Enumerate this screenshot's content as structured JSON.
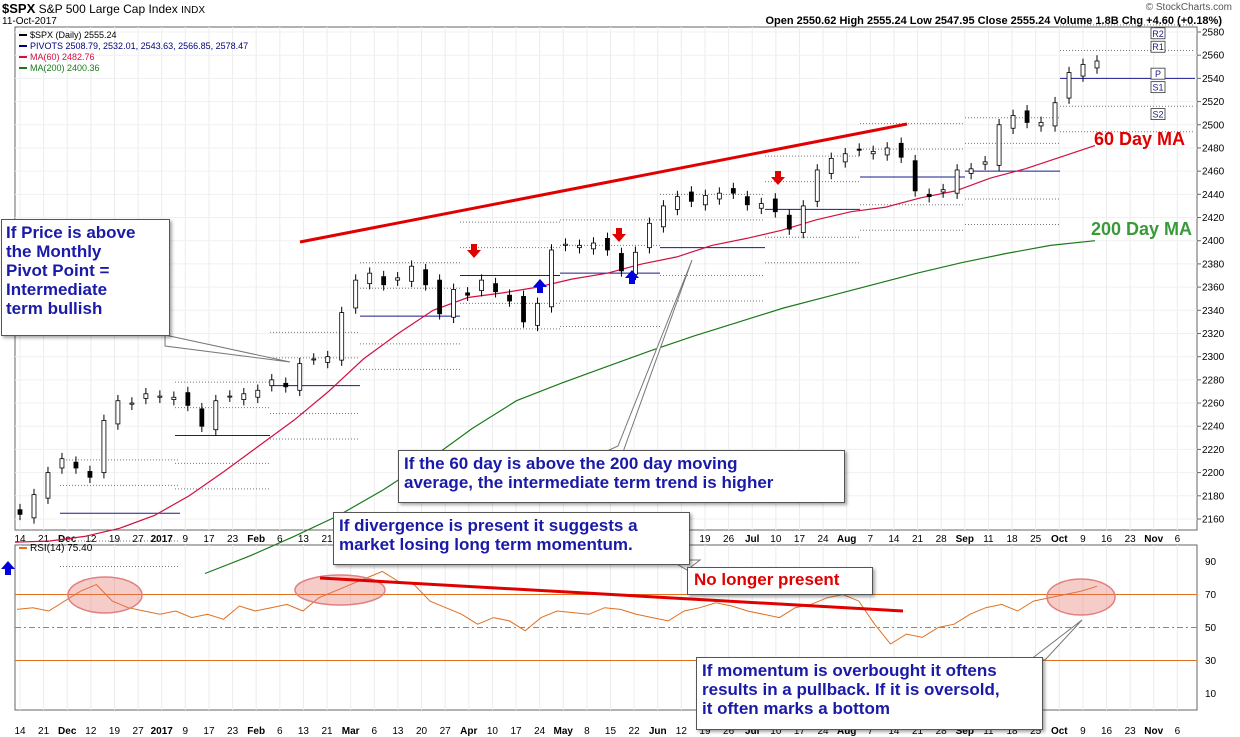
{
  "header": {
    "symbol": "$SPX",
    "name": "S&P 500 Large Cap Index",
    "exchange": "INDX",
    "date": "11-Oct-2017",
    "quote": "Open 2550.62  High 2555.24  Low 2547.95  Close 2555.24  Volume 1.8B  Chg +4.60 (+0.18%)",
    "credit": "© StockCharts.com",
    "legend": [
      {
        "text": "$SPX (Daily) 2555.24",
        "color": "#000000"
      },
      {
        "text": "PIVOTS 2508.79, 2532.01, 2543.63, 2566.85, 2578.47",
        "color": "#000080"
      },
      {
        "text": "MA(60) 2482.76",
        "color": "#d21040"
      },
      {
        "text": "MA(200) 2400.36",
        "color": "#1a7a1a"
      }
    ],
    "rsi_label": "RSI(14) 75.40"
  },
  "annotations": {
    "monthly_pivot": "If Price is above\nthe Monthly\nPivot Point =\nIntermediate\nterm bullish",
    "ma_cross": "If the 60 day is above the 200 day moving\naverage, the intermediate term trend is higher",
    "divergence": "If divergence is present it suggests a\nmarket losing long term momentum.",
    "no_longer": "No longer present",
    "overbought": "If momentum is overbought it oftens\nresults in a pullback.  If it is oversold,\nit often marks a bottom",
    "ma60_label": "60 Day MA",
    "ma200_label": "200 Day MA"
  },
  "chart_data": {
    "type": "line",
    "title": "$SPX S&P 500 Large Cap Index (Daily)",
    "price_axis": {
      "ylim": [
        2150,
        2590
      ],
      "ticks": [
        2160,
        2180,
        2200,
        2220,
        2240,
        2260,
        2280,
        2300,
        2320,
        2340,
        2360,
        2380,
        2400,
        2420,
        2440,
        2460,
        2480,
        2500,
        2520,
        2540,
        2560,
        2580
      ]
    },
    "rsi_axis": {
      "ylim": [
        0,
        100
      ],
      "ticks": [
        10,
        30,
        50,
        70,
        90
      ],
      "overbought": 70,
      "oversold": 30
    },
    "x_ticks": [
      "14",
      "21",
      "Dec",
      "12",
      "19",
      "27",
      "2017",
      "9",
      "17",
      "23",
      "Feb",
      "6",
      "13",
      "21",
      "Mar",
      "6",
      "13",
      "20",
      "27",
      "Apr",
      "10",
      "17",
      "24",
      "May",
      "8",
      "15",
      "22",
      "Jun",
      "12",
      "19",
      "26",
      "Jul",
      "10",
      "17",
      "24",
      "Aug",
      "7",
      "14",
      "21",
      "28",
      "Sep",
      "11",
      "18",
      "25",
      "Oct",
      "9",
      "16",
      "23",
      "Nov",
      "6"
    ],
    "series": [
      {
        "name": "$SPX (Daily)",
        "values": [
          2164,
          2181,
          2200,
          2212,
          2204,
          2196,
          2245,
          2262,
          2260,
          2268,
          2266,
          2265,
          2258,
          2240,
          2262,
          2266,
          2268,
          2271,
          2280,
          2274,
          2294,
          2298,
          2300,
          2338,
          2366,
          2372,
          2362,
          2368,
          2378,
          2362,
          2337,
          2358,
          2353,
          2366,
          2356,
          2348,
          2330,
          2346,
          2392,
          2397,
          2396,
          2398,
          2392,
          2374,
          2390,
          2415,
          2430,
          2438,
          2434,
          2439,
          2441,
          2441,
          2431,
          2432,
          2425,
          2410,
          2430,
          2461,
          2471,
          2475,
          2478,
          2477,
          2480,
          2472,
          2443,
          2438,
          2444,
          2461,
          2462,
          2468,
          2500,
          2508,
          2502,
          2502,
          2519,
          2545,
          2552,
          2555
        ]
      },
      {
        "name": "MA(60)",
        "values": [
          2140,
          2141,
          2145,
          2152,
          2163,
          2180,
          2201,
          2223,
          2245,
          2270,
          2298,
          2320,
          2340,
          2351,
          2355,
          2360,
          2367,
          2372,
          2380,
          2386,
          2396,
          2402,
          2409,
          2418,
          2425,
          2429,
          2437,
          2443,
          2454,
          2462,
          2472,
          2482
        ]
      },
      {
        "name": "MA(200)",
        "values": [
          2113,
          2128,
          2145,
          2163,
          2185,
          2210,
          2238,
          2262,
          2277,
          2291,
          2305,
          2318,
          2330,
          2342,
          2352,
          2362,
          2372,
          2381,
          2389,
          2396,
          2400
        ]
      },
      {
        "name": "PIVOTS",
        "values": [
          2508.79,
          2532.01,
          2543.63,
          2566.85,
          2578.47
        ]
      },
      {
        "name": "RSI(14)",
        "values": [
          61,
          62,
          60,
          66,
          72,
          76,
          66,
          62,
          60,
          58,
          60,
          56,
          58,
          55,
          63,
          60,
          62,
          64,
          60,
          68,
          72,
          76,
          80,
          84,
          78,
          76,
          66,
          62,
          58,
          52,
          56,
          54,
          48,
          56,
          60,
          59,
          58,
          62,
          61,
          58,
          56,
          54,
          60,
          62,
          65,
          63,
          60,
          58,
          56,
          62,
          64,
          68,
          70,
          66,
          52,
          40,
          46,
          44,
          50,
          52,
          58,
          62,
          64,
          60,
          66,
          68,
          70,
          72,
          75
        ]
      }
    ],
    "pivot_labels": [
      "R2",
      "R1",
      "P",
      "S1",
      "S2"
    ],
    "grid": true,
    "legend": "top-left"
  }
}
